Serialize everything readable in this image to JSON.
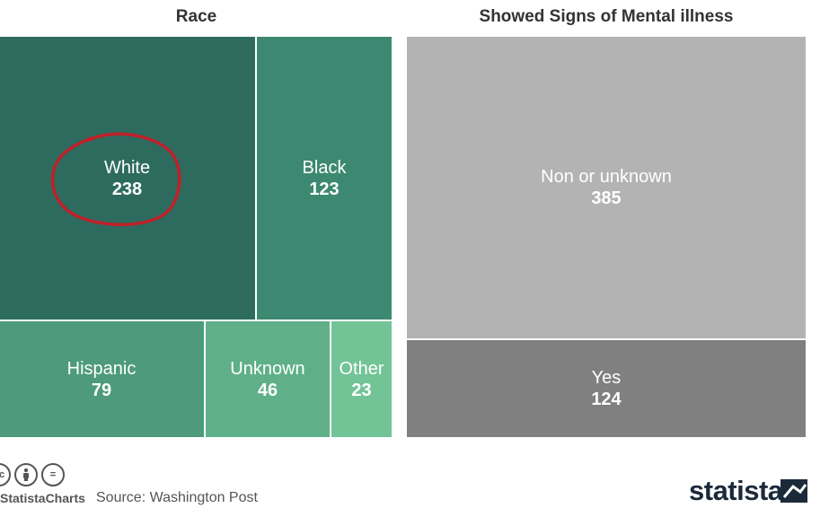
{
  "chart_data": [
    {
      "type": "treemap",
      "title": "Race",
      "items": [
        {
          "label": "White",
          "value": 238,
          "color": "#2d6b5f",
          "highlighted": true
        },
        {
          "label": "Black",
          "value": 123,
          "color": "#3d8870"
        },
        {
          "label": "Hispanic",
          "value": 79,
          "color": "#4d9a7c"
        },
        {
          "label": "Unknown",
          "value": 46,
          "color": "#5fb088"
        },
        {
          "label": "Other",
          "value": 23,
          "color": "#72c496"
        }
      ]
    },
    {
      "type": "treemap",
      "title": "Showed Signs of Mental illness",
      "items": [
        {
          "label": "Non or unknown",
          "value": 385,
          "color": "#b3b3b3"
        },
        {
          "label": "Yes",
          "value": 124,
          "color": "#808080"
        }
      ]
    }
  ],
  "footer": {
    "handle": "StatistaCharts",
    "source": "Source: Washington Post",
    "brand": "statista",
    "cc_icons": [
      "cc-icon",
      "by-icon",
      "nd-icon"
    ],
    "cc_glyphs": [
      "cc",
      "",
      "="
    ]
  },
  "annotation": {
    "shape": "hand-drawn circle",
    "color": "#c0202a",
    "target": "White"
  }
}
